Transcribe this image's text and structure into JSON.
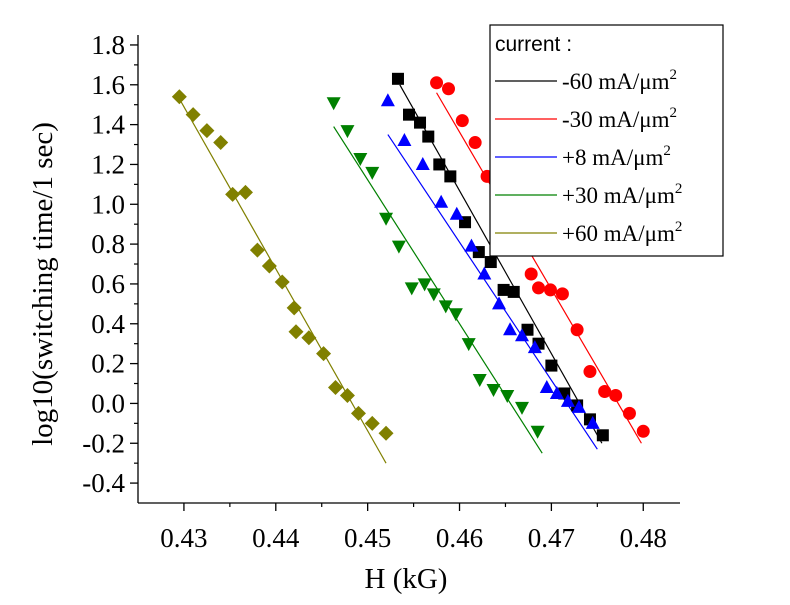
{
  "chart_data": {
    "type": "scatter",
    "title": "",
    "xlabel": "H (kG)",
    "ylabel": "log10(switching time/1 sec)",
    "xlim": [
      0.425,
      0.484
    ],
    "ylim": [
      -0.5,
      1.85
    ],
    "xticks": [
      "0.43",
      "0.44",
      "0.45",
      "0.46",
      "0.47",
      "0.48"
    ],
    "yticks": [
      "1.8",
      "1.6",
      "1.4",
      "1.2",
      "1.0",
      "0.8",
      "0.6",
      "0.4",
      "0.2",
      "0.0",
      "-0.2",
      "-0.4"
    ],
    "grid": false,
    "legend_position": "top-right",
    "legend_title": "current :",
    "series": [
      {
        "name": "-60 mA/μm2",
        "label_main": "-60 mA/μm",
        "label_sup": "2",
        "color": "#000000",
        "marker": "square",
        "x": [
          0.4533,
          0.4545,
          0.4557,
          0.4566,
          0.4578,
          0.459,
          0.4606,
          0.4621,
          0.4634,
          0.4648,
          0.4659,
          0.4674,
          0.4686,
          0.47,
          0.4714,
          0.4728,
          0.4742,
          0.4756
        ],
        "y": [
          1.63,
          1.45,
          1.41,
          1.34,
          1.2,
          1.14,
          0.91,
          0.76,
          0.71,
          0.57,
          0.56,
          0.37,
          0.3,
          0.19,
          0.05,
          -0.01,
          -0.08,
          -0.16
        ],
        "fit": [
          [
            0.4535,
            1.6
          ],
          [
            0.4755,
            -0.2
          ]
        ]
      },
      {
        "name": "-30 mA/μm2",
        "label_main": "-30 mA/μm",
        "label_sup": "2",
        "color": "#ff0000",
        "marker": "circle",
        "x": [
          0.4575,
          0.4588,
          0.4603,
          0.4617,
          0.463,
          0.4648,
          0.4663,
          0.4678,
          0.4686,
          0.4699,
          0.4712,
          0.4728,
          0.4742,
          0.4758,
          0.477,
          0.4785,
          0.48
        ],
        "y": [
          1.61,
          1.58,
          1.42,
          1.31,
          1.14,
          0.92,
          0.78,
          0.65,
          0.58,
          0.57,
          0.55,
          0.37,
          0.16,
          0.06,
          0.04,
          -0.05,
          -0.14
        ],
        "fit": [
          [
            0.4575,
            1.56
          ],
          [
            0.4798,
            -0.2
          ]
        ]
      },
      {
        "name": "+8 mA/μm2",
        "label_main": "+8  mA/μm",
        "label_sup": "2",
        "color": "#0000ff",
        "marker": "triangle-up",
        "x": [
          0.4522,
          0.454,
          0.456,
          0.458,
          0.4597,
          0.4613,
          0.4627,
          0.4643,
          0.4655,
          0.4668,
          0.4682,
          0.4695,
          0.4706,
          0.4718,
          0.473,
          0.4745
        ],
        "y": [
          1.52,
          1.32,
          1.2,
          1.01,
          0.95,
          0.79,
          0.65,
          0.5,
          0.37,
          0.34,
          0.28,
          0.08,
          0.05,
          0.01,
          -0.02,
          -0.1
        ],
        "fit": [
          [
            0.4522,
            1.35
          ],
          [
            0.475,
            -0.23
          ]
        ]
      },
      {
        "name": "+30 mA/μm2",
        "label_main": "+30  mA/μm",
        "label_sup": "2",
        "color": "#008000",
        "marker": "triangle-down",
        "x": [
          0.4463,
          0.4478,
          0.4492,
          0.4505,
          0.452,
          0.4534,
          0.4548,
          0.4562,
          0.4572,
          0.4585,
          0.4596,
          0.461,
          0.4622,
          0.4637,
          0.4652,
          0.4668,
          0.4685
        ],
        "y": [
          1.51,
          1.37,
          1.23,
          1.16,
          0.93,
          0.79,
          0.58,
          0.6,
          0.55,
          0.49,
          0.45,
          0.3,
          0.12,
          0.07,
          0.04,
          -0.02,
          -0.14
        ],
        "fit": [
          [
            0.4463,
            1.39
          ],
          [
            0.469,
            -0.25
          ]
        ]
      },
      {
        "name": "+60 mA/μm2",
        "label_main": "+60 mA/μm",
        "label_sup": "2",
        "color": "#808000",
        "marker": "diamond",
        "x": [
          0.4295,
          0.431,
          0.4325,
          0.434,
          0.4353,
          0.4367,
          0.438,
          0.4393,
          0.4407,
          0.442,
          0.4422,
          0.4436,
          0.4452,
          0.4465,
          0.4478,
          0.449,
          0.4505,
          0.452
        ],
        "y": [
          1.54,
          1.45,
          1.37,
          1.31,
          1.05,
          1.06,
          0.77,
          0.69,
          0.61,
          0.48,
          0.36,
          0.33,
          0.25,
          0.08,
          0.04,
          -0.05,
          -0.1,
          -0.15
        ],
        "fit": [
          [
            0.4295,
            1.53
          ],
          [
            0.452,
            -0.3
          ]
        ]
      }
    ]
  }
}
